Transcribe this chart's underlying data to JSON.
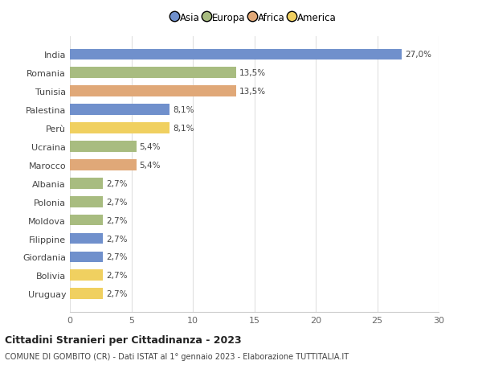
{
  "countries": [
    "India",
    "Romania",
    "Tunisia",
    "Palestina",
    "Perù",
    "Ucraina",
    "Marocco",
    "Albania",
    "Polonia",
    "Moldova",
    "Filippine",
    "Giordania",
    "Bolivia",
    "Uruguay"
  ],
  "values": [
    27.0,
    13.5,
    13.5,
    8.1,
    8.1,
    5.4,
    5.4,
    2.7,
    2.7,
    2.7,
    2.7,
    2.7,
    2.7,
    2.7
  ],
  "labels": [
    "27,0%",
    "13,5%",
    "13,5%",
    "8,1%",
    "8,1%",
    "5,4%",
    "5,4%",
    "2,7%",
    "2,7%",
    "2,7%",
    "2,7%",
    "2,7%",
    "2,7%",
    "2,7%"
  ],
  "continents": [
    "Asia",
    "Europa",
    "Africa",
    "Asia",
    "America",
    "Europa",
    "Africa",
    "Europa",
    "Europa",
    "Europa",
    "Asia",
    "Asia",
    "America",
    "America"
  ],
  "bar_colors": [
    "#7090cc",
    "#a8bc80",
    "#e0a878",
    "#7090cc",
    "#f0d060",
    "#a8bc80",
    "#e0a878",
    "#a8bc80",
    "#a8bc80",
    "#a8bc80",
    "#7090cc",
    "#7090cc",
    "#f0d060",
    "#f0d060"
  ],
  "legend_labels": [
    "Asia",
    "Europa",
    "Africa",
    "America"
  ],
  "legend_colors": [
    "#7090cc",
    "#a8bc80",
    "#e0a878",
    "#f0d060"
  ],
  "title": "Cittadini Stranieri per Cittadinanza - 2023",
  "subtitle": "COMUNE DI GOMBITO (CR) - Dati ISTAT al 1° gennaio 2023 - Elaborazione TUTTITALIA.IT",
  "xlim": [
    0,
    30
  ],
  "xticks": [
    0,
    5,
    10,
    15,
    20,
    25,
    30
  ],
  "background_color": "#ffffff",
  "grid_color": "#e0e0e0"
}
